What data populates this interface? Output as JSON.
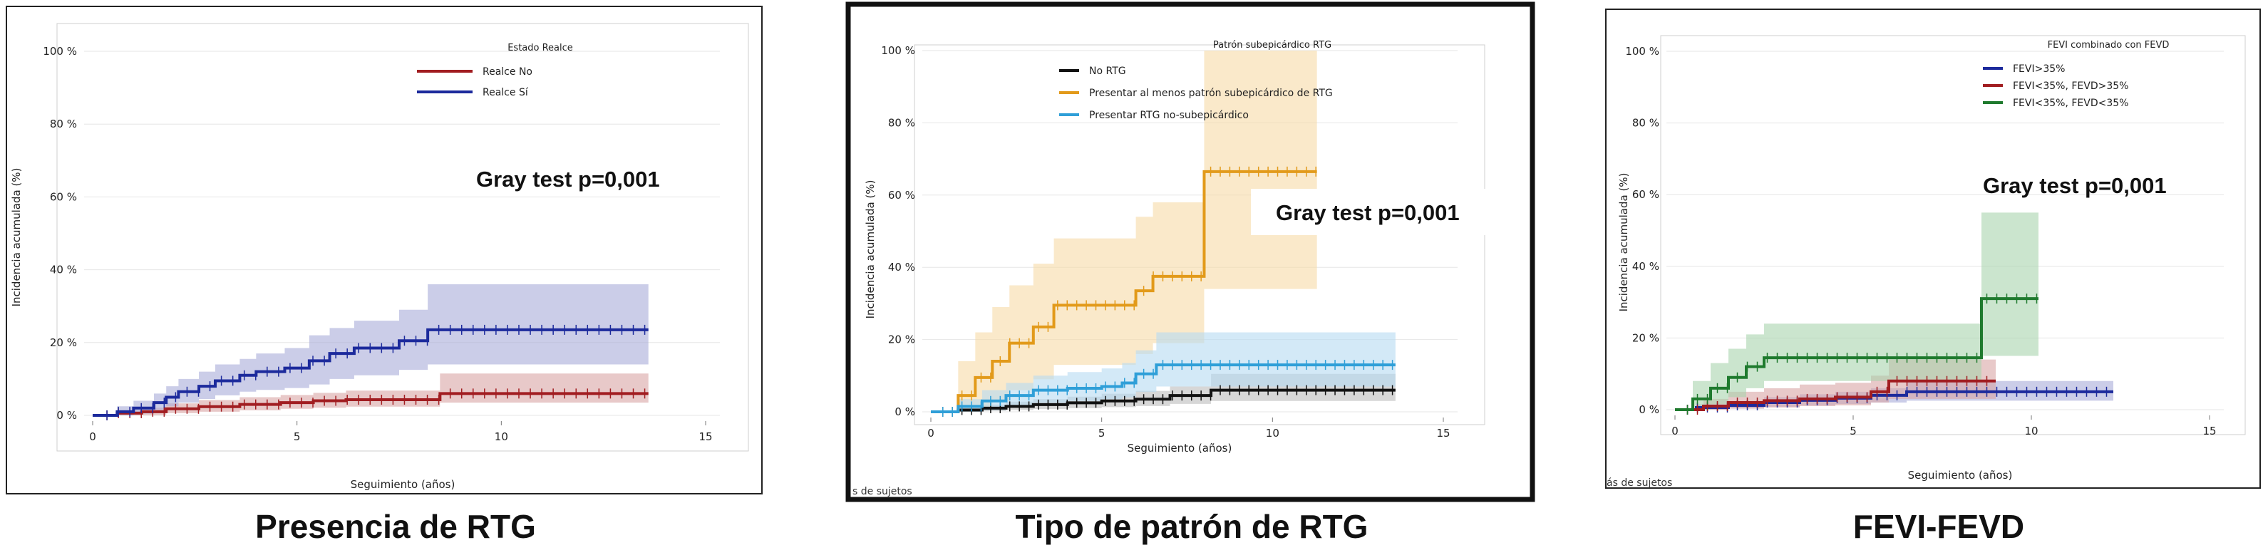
{
  "chart_data": [
    {
      "type": "line",
      "step": true,
      "caption": "Presencia de RTG",
      "xlabel": "Seguimiento (años)",
      "ylabel": "Incidencia acumulada (%)",
      "xlim": [
        0,
        15
      ],
      "ylim": [
        0,
        100
      ],
      "xticks": [
        "0",
        "5",
        "10",
        "15"
      ],
      "yticks": [
        "0 %",
        "20 %",
        "40 %",
        "60 %",
        "80 %",
        "100 %"
      ],
      "legend_title": "Estado Realce",
      "legend_position": "top-right",
      "annotation": "Gray test p=0,001",
      "footnote": "",
      "framed": false,
      "series": [
        {
          "name": "Realce No",
          "color": "#a11d21",
          "band_color": "#d9a5a5",
          "x": [
            0,
            0.6,
            1.2,
            1.8,
            2.6,
            3.6,
            4.6,
            5.4,
            6.2,
            8.5,
            13.6
          ],
          "y": [
            0,
            0.6,
            1.0,
            1.8,
            2.4,
            3.0,
            3.5,
            4.0,
            4.3,
            6.0,
            6.0
          ],
          "lower": [
            0,
            0,
            0.1,
            0.6,
            1.0,
            1.4,
            1.8,
            2.1,
            2.4,
            3.5,
            3.5
          ],
          "upper": [
            0,
            1.4,
            2.1,
            3.3,
            4.2,
            5.0,
            5.6,
            6.2,
            6.8,
            11.5,
            11.5
          ]
        },
        {
          "name": "Realce Sí",
          "color": "#1c2a9c",
          "band_color": "#a9acd9",
          "x": [
            0,
            0.6,
            1.0,
            1.5,
            1.8,
            2.1,
            2.6,
            3.0,
            3.6,
            4.0,
            4.7,
            5.3,
            5.8,
            6.4,
            7.5,
            8.2,
            13.6
          ],
          "y": [
            0,
            1.0,
            2.0,
            3.5,
            5.0,
            6.5,
            8.0,
            9.5,
            11.0,
            12.0,
            13.0,
            15.0,
            17.0,
            18.5,
            20.5,
            23.5,
            23.5
          ],
          "lower": [
            0,
            0,
            0.5,
            1.5,
            2.5,
            3.5,
            4.5,
            5.5,
            6.5,
            7.0,
            7.5,
            8.5,
            10.0,
            11.0,
            12.5,
            14.0,
            14.0
          ],
          "upper": [
            0,
            2.5,
            4.0,
            6.0,
            8.0,
            10.0,
            12.0,
            14.0,
            15.5,
            17.0,
            18.5,
            22.0,
            24.0,
            26.0,
            29.0,
            36.0,
            36.0
          ]
        }
      ]
    },
    {
      "type": "line",
      "step": true,
      "caption": "Tipo de patrón de RTG",
      "xlabel": "Seguimiento (años)",
      "ylabel": "Incidencia acumulada (%)",
      "xlim": [
        0,
        15
      ],
      "ylim": [
        0,
        100
      ],
      "xticks": [
        "0",
        "5",
        "10",
        "15"
      ],
      "yticks": [
        "0 %",
        "20 %",
        "40 %",
        "60 %",
        "80 %",
        "100 %"
      ],
      "legend_title": "Patrón subepicárdico RTG",
      "legend_position": "top-left",
      "annotation": "Gray test p=0,001",
      "footnote": "s de sujetos",
      "framed": true,
      "series": [
        {
          "name": "No RTG",
          "color": "#111111",
          "band_color": "#bdbdbd",
          "x": [
            0,
            0.8,
            1.5,
            2.2,
            3.0,
            4.0,
            5.0,
            6.0,
            7.0,
            8.2,
            13.6
          ],
          "y": [
            0,
            0.5,
            1.0,
            1.5,
            2.0,
            2.5,
            3.0,
            3.5,
            4.5,
            6.0,
            6.0
          ],
          "lower": [
            0,
            0,
            0.2,
            0.5,
            0.8,
            1.0,
            1.3,
            1.6,
            2.2,
            3.0,
            3.0
          ],
          "upper": [
            0,
            1.2,
            2.0,
            2.8,
            3.5,
            4.2,
            5.0,
            5.8,
            7.0,
            10.5,
            10.5
          ]
        },
        {
          "name": "Presentar al menos patrón subepicárdico de RTG",
          "color": "#e29a1a",
          "band_color": "#f7dba6",
          "x": [
            0,
            0.8,
            1.3,
            1.8,
            2.3,
            3.0,
            3.6,
            4.1,
            6.0,
            6.5,
            8.0,
            11.3
          ],
          "y": [
            0,
            4.5,
            9.5,
            14.0,
            19.0,
            23.5,
            29.5,
            29.5,
            33.5,
            37.5,
            66.5,
            66.5
          ],
          "lower": [
            0,
            0,
            1.0,
            3.0,
            6.0,
            9.0,
            13.0,
            13.0,
            16.0,
            19.0,
            34.0,
            34.0
          ],
          "upper": [
            0,
            14.0,
            22.0,
            29.0,
            35.0,
            41.0,
            48.0,
            48.0,
            54.0,
            58.0,
            100.0,
            100.0
          ]
        },
        {
          "name": "Presentar RTG no-subepicárdico",
          "color": "#2f9fd8",
          "band_color": "#b5daf1",
          "x": [
            0,
            0.8,
            1.5,
            2.2,
            3.0,
            4.0,
            5.0,
            5.6,
            6.0,
            6.6,
            8.0,
            13.6
          ],
          "y": [
            0,
            1.5,
            3.0,
            4.5,
            6.0,
            6.5,
            7.0,
            8.0,
            10.5,
            13.0,
            13.0,
            13.0
          ],
          "lower": [
            0,
            0,
            0.5,
            1.5,
            2.5,
            3.0,
            3.5,
            4.0,
            5.5,
            7.0,
            7.0,
            7.0
          ],
          "upper": [
            0,
            3.5,
            6.0,
            8.0,
            10.0,
            11.0,
            12.0,
            13.5,
            17.0,
            22.0,
            22.0,
            22.0
          ]
        }
      ]
    },
    {
      "type": "line",
      "step": true,
      "caption": "FEVI-FEVD",
      "xlabel": "Seguimiento (años)",
      "ylabel": "Incidencia acumulada (%)",
      "xlim": [
        0,
        15
      ],
      "ylim": [
        0,
        100
      ],
      "xticks": [
        "0",
        "5",
        "10",
        "15"
      ],
      "yticks": [
        "0 %",
        "20 %",
        "40 %",
        "60 %",
        "80 %",
        "100 %"
      ],
      "legend_title": "FEVI combinado con FEVD",
      "legend_position": "top-left",
      "annotation": "Gray test p=0,001",
      "footnote": "ás de sujetos",
      "framed": false,
      "series": [
        {
          "name": "FEVI>35%",
          "color": "#1c2a9c",
          "band_color": "#a9acd9",
          "x": [
            0,
            0.6,
            1.5,
            2.5,
            3.5,
            4.5,
            5.5,
            6.5,
            12.3
          ],
          "y": [
            0,
            0.6,
            1.2,
            2.0,
            2.6,
            3.2,
            4.0,
            5.0,
            5.0
          ],
          "lower": [
            0,
            0,
            0.3,
            0.8,
            1.2,
            1.6,
            2.0,
            2.5,
            2.5
          ],
          "upper": [
            0,
            1.5,
            2.4,
            3.5,
            4.3,
            5.0,
            6.0,
            8.0,
            8.0
          ]
        },
        {
          "name": "FEVI<35%, FEVD>35%",
          "color": "#a11d21",
          "band_color": "#d9a5a5",
          "x": [
            0,
            0.8,
            1.5,
            2.5,
            3.5,
            4.5,
            5.5,
            6.0,
            9.0
          ],
          "y": [
            0,
            1.0,
            2.0,
            2.5,
            3.0,
            3.5,
            5.0,
            8.0,
            8.0
          ],
          "lower": [
            0,
            0,
            0.3,
            0.6,
            1.0,
            1.2,
            2.0,
            3.0,
            3.0
          ],
          "upper": [
            0,
            3.0,
            5.0,
            6.0,
            7.0,
            7.5,
            9.5,
            14.0,
            14.0
          ]
        },
        {
          "name": "FEVI<35%, FEVD<35%",
          "color": "#1f7a2e",
          "band_color": "#a9d3ae",
          "x": [
            0,
            0.5,
            1.0,
            1.5,
            2.0,
            2.5,
            8.6,
            10.2
          ],
          "y": [
            0,
            3.0,
            6.0,
            9.0,
            12.0,
            14.5,
            31.0,
            31.0
          ],
          "lower": [
            0,
            0,
            1.5,
            3.5,
            6.0,
            8.0,
            15.0,
            15.0
          ],
          "upper": [
            0,
            8.0,
            13.0,
            17.0,
            21.0,
            24.0,
            55.0,
            55.0
          ]
        }
      ]
    }
  ]
}
